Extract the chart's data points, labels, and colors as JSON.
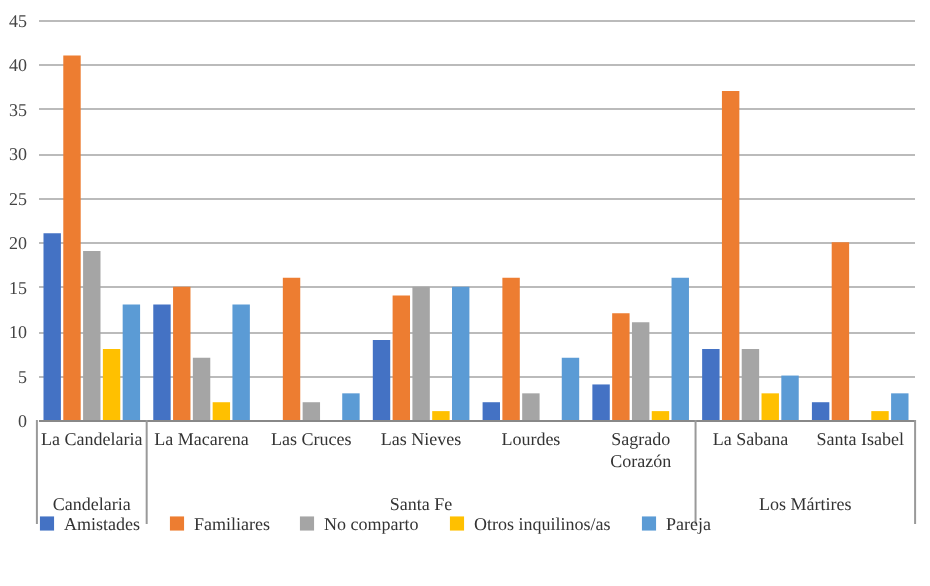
{
  "chart_data": {
    "type": "bar",
    "categories": [
      "La Candelaria",
      "La Macarena",
      "Las Cruces",
      "Las Nieves",
      "Lourdes",
      "Sagrado Corazón",
      "La Sabana",
      "Santa Isabel"
    ],
    "series": [
      {
        "name": "Amistades",
        "color": "#4472c4",
        "values": [
          21,
          13,
          0,
          9,
          2,
          4,
          8,
          2
        ]
      },
      {
        "name": "Familiares",
        "color": "#ed7d31",
        "values": [
          41,
          15,
          16,
          14,
          16,
          12,
          37,
          20
        ]
      },
      {
        "name": "No comparto",
        "color": "#a5a5a5",
        "values": [
          19,
          7,
          2,
          15,
          3,
          11,
          8,
          0
        ]
      },
      {
        "name": "Otros inquilinos/as",
        "color": "#ffc000",
        "values": [
          8,
          2,
          0,
          1,
          0,
          1,
          3,
          1
        ]
      },
      {
        "name": "Pareja",
        "color": "#5b9bd5",
        "values": [
          13,
          13,
          3,
          15,
          7,
          16,
          5,
          3
        ]
      }
    ],
    "annotations": [
      "Candelaria",
      "Santa Fe",
      "Los Mártires"
    ],
    "ylim": [
      0,
      45
    ],
    "yticks": [
      0,
      5,
      10,
      15,
      20,
      25,
      30,
      35,
      40,
      45
    ],
    "grid": "y",
    "legend": "bottom"
  }
}
